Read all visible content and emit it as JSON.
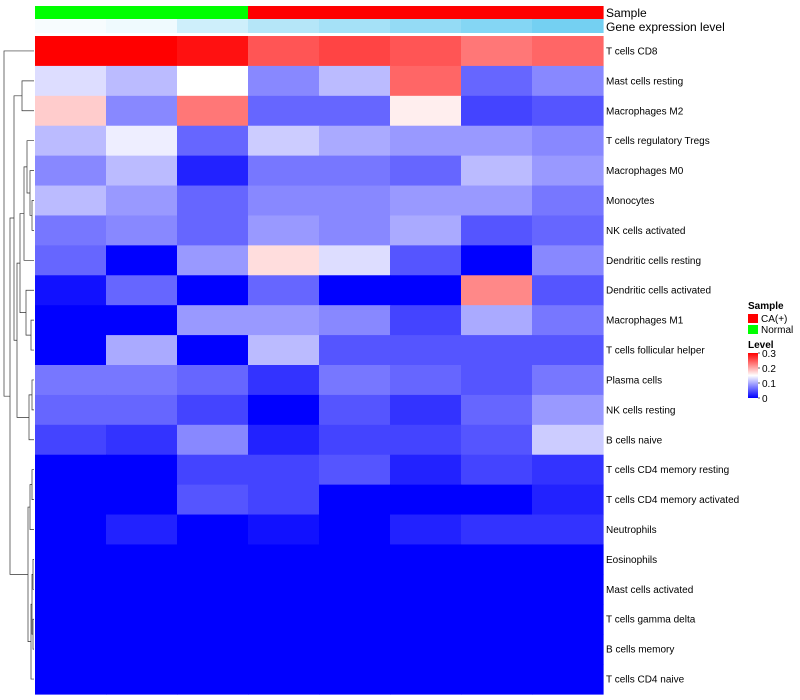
{
  "chart_data": {
    "type": "heatmap",
    "annotation_labels": {
      "sample": "Sample",
      "expression": "Gene expression level"
    },
    "sample_groups": [
      "Normal",
      "Normal",
      "Normal",
      "CA(+)",
      "CA(+)",
      "CA(+)",
      "CA(+)",
      "CA(+)"
    ],
    "expression_levels": [
      0.05,
      0.1,
      0.3,
      0.45,
      0.55,
      0.65,
      0.75,
      0.85
    ],
    "rows": [
      "T cells CD8",
      "Mast cells resting",
      "Macrophages M2",
      "T cells regulatory  Tregs",
      "Macrophages M0",
      "Monocytes",
      "NK cells activated",
      "Dendritic cells resting",
      "Dendritic cells activated",
      "Macrophages M1",
      "T cells follicular helper",
      "Plasma cells",
      "NK cells resting",
      "B cells naive",
      "T cells CD4 memory resting",
      "T cells CD4 memory activated",
      "Neutrophils",
      "Eosinophils",
      "Mast cells activated",
      "T cells gamma delta",
      "B cells memory",
      "T cells CD4 naive"
    ],
    "values": [
      [
        0.3,
        0.3,
        0.29,
        0.25,
        0.26,
        0.25,
        0.23,
        0.24
      ],
      [
        0.13,
        0.11,
        0.15,
        0.08,
        0.11,
        0.24,
        0.06,
        0.08
      ],
      [
        0.18,
        0.08,
        0.23,
        0.06,
        0.06,
        0.16,
        0.04,
        0.05
      ],
      [
        0.11,
        0.14,
        0.06,
        0.12,
        0.1,
        0.09,
        0.09,
        0.08
      ],
      [
        0.08,
        0.11,
        0.02,
        0.07,
        0.07,
        0.06,
        0.11,
        0.09
      ],
      [
        0.11,
        0.09,
        0.06,
        0.08,
        0.08,
        0.09,
        0.09,
        0.07
      ],
      [
        0.07,
        0.08,
        0.06,
        0.09,
        0.08,
        0.1,
        0.05,
        0.06
      ],
      [
        0.06,
        0.0,
        0.09,
        0.17,
        0.13,
        0.05,
        0.0,
        0.08
      ],
      [
        0.01,
        0.06,
        0.0,
        0.06,
        0.0,
        0.0,
        0.22,
        0.05
      ],
      [
        0.0,
        0.0,
        0.09,
        0.09,
        0.08,
        0.04,
        0.1,
        0.07
      ],
      [
        0.0,
        0.1,
        0.0,
        0.11,
        0.05,
        0.05,
        0.05,
        0.05
      ],
      [
        0.07,
        0.07,
        0.06,
        0.03,
        0.07,
        0.06,
        0.05,
        0.07
      ],
      [
        0.06,
        0.06,
        0.04,
        0.0,
        0.05,
        0.03,
        0.06,
        0.09
      ],
      [
        0.04,
        0.03,
        0.08,
        0.02,
        0.04,
        0.04,
        0.05,
        0.12
      ],
      [
        0.0,
        0.0,
        0.04,
        0.04,
        0.05,
        0.02,
        0.04,
        0.03
      ],
      [
        0.0,
        0.0,
        0.05,
        0.04,
        0.0,
        0.0,
        0.0,
        0.02
      ],
      [
        0.0,
        0.02,
        0.0,
        0.01,
        0.0,
        0.02,
        0.03,
        0.03
      ],
      [
        0.0,
        0.0,
        0.0,
        0.0,
        0.0,
        0.0,
        0.0,
        0.0
      ],
      [
        0.0,
        0.0,
        0.0,
        0.0,
        0.0,
        0.0,
        0.0,
        0.0
      ],
      [
        0.0,
        0.0,
        0.0,
        0.0,
        0.0,
        0.0,
        0.0,
        0.0
      ],
      [
        0.0,
        0.0,
        0.0,
        0.0,
        0.0,
        0.0,
        0.0,
        0.0
      ],
      [
        0.0,
        0.0,
        0.0,
        0.0,
        0.0,
        0.0,
        0.0,
        0.0
      ]
    ],
    "color_scale": {
      "min": 0,
      "max": 0.3,
      "low": "#0000ff",
      "mid": "#ffffff",
      "high": "#ff0000"
    },
    "legend": {
      "placement": "right",
      "sample_title": "Sample",
      "sample_entries": [
        {
          "label": "CA(+)",
          "color": "#ff0000"
        },
        {
          "label": "Normal",
          "color": "#00ff00"
        }
      ],
      "level_title": "Level",
      "level_ticks": [
        "0.3",
        "0.2",
        "0.1",
        "0"
      ]
    },
    "colors": {
      "normal": "#00ff00",
      "ca": "#ff0000",
      "expression_low": "#ffffff",
      "expression_high": "#5bc8f0"
    }
  }
}
